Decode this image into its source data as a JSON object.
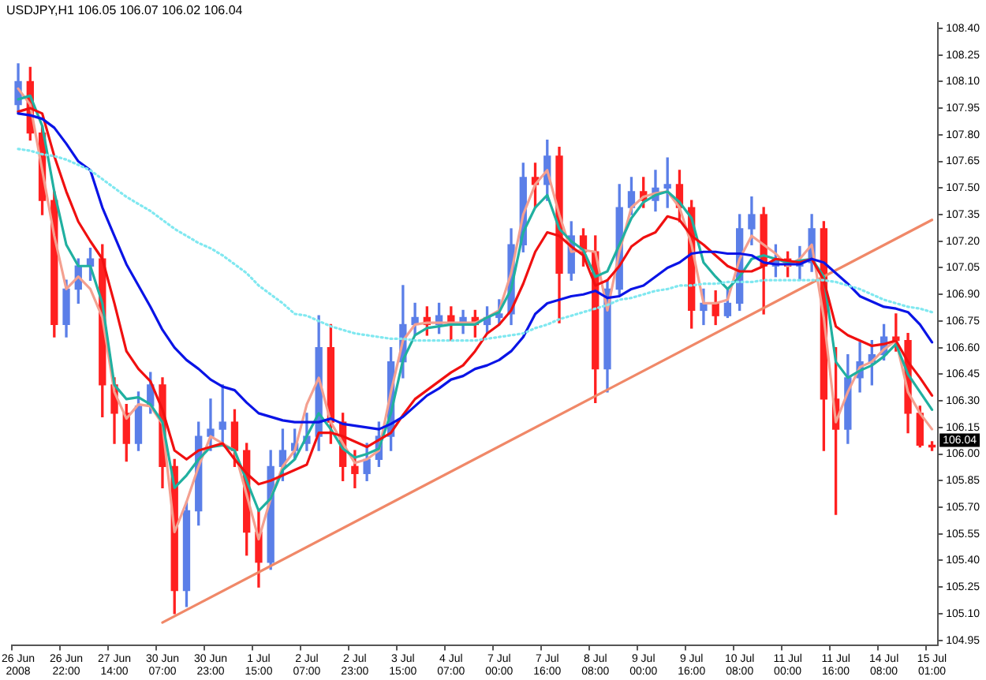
{
  "chart_data": {
    "type": "candlestick",
    "title": "USDJPY,H1 106.05 106.07 106.02 106.04",
    "categories": [
      "26 Jun 2008",
      null,
      null,
      null,
      "26 Jun 22:00",
      null,
      null,
      null,
      "27 Jun 14:00",
      null,
      null,
      null,
      "30 Jun 07:00",
      null,
      null,
      null,
      "30 Jun 23:00",
      null,
      null,
      null,
      "1 Jul 15:00",
      null,
      null,
      null,
      "2 Jul 07:00",
      null,
      null,
      null,
      "2 Jul 23:00",
      null,
      null,
      null,
      "3 Jul 15:00",
      null,
      null,
      null,
      "4 Jul 07:00",
      null,
      null,
      null,
      "7 Jul 00:00",
      null,
      null,
      null,
      "7 Jul 16:00",
      null,
      null,
      null,
      "8 Jul 08:00",
      null,
      null,
      null,
      "9 Jul 00:00",
      null,
      null,
      null,
      "9 Jul 16:00",
      null,
      null,
      null,
      "10 Jul 08:00",
      null,
      null,
      null,
      "11 Jul 00:00",
      null,
      null,
      null,
      "11 Jul 16:00",
      null,
      null,
      null,
      "14 Jul 08:00",
      null,
      null,
      null,
      "15 Jul 01:00"
    ],
    "ohlc": [
      [
        107.97,
        108.2,
        107.92,
        108.1
      ],
      [
        108.1,
        108.18,
        107.77,
        107.81
      ],
      [
        107.81,
        107.85,
        107.35,
        107.43
      ],
      [
        107.43,
        107.48,
        106.66,
        106.73
      ],
      [
        106.73,
        106.98,
        106.66,
        106.93
      ],
      [
        106.93,
        107.1,
        106.85,
        107.06
      ],
      [
        107.06,
        107.16,
        106.98,
        107.1
      ],
      [
        107.1,
        107.18,
        106.21,
        106.39
      ],
      [
        106.39,
        106.43,
        106.06,
        106.23
      ],
      [
        106.23,
        106.28,
        105.96,
        106.06
      ],
      [
        106.06,
        106.35,
        106.02,
        106.27
      ],
      [
        106.27,
        106.46,
        106.23,
        106.39
      ],
      [
        106.39,
        106.43,
        105.81,
        105.93
      ],
      [
        105.93,
        105.97,
        105.1,
        105.23
      ],
      [
        105.23,
        105.73,
        105.14,
        105.68
      ],
      [
        105.68,
        106.18,
        105.6,
        106.1
      ],
      [
        106.1,
        106.31,
        106.02,
        106.14
      ],
      [
        106.14,
        106.39,
        106.06,
        106.18
      ],
      [
        106.18,
        106.25,
        105.93,
        106.02
      ],
      [
        106.02,
        106.06,
        105.43,
        105.56
      ],
      [
        105.56,
        105.68,
        105.25,
        105.39
      ],
      [
        105.39,
        106.02,
        105.35,
        105.93
      ],
      [
        105.93,
        106.14,
        105.85,
        106.02
      ],
      [
        106.02,
        106.14,
        105.97,
        106.06
      ],
      [
        106.06,
        106.23,
        106.02,
        106.1
      ],
      [
        106.1,
        106.78,
        106.02,
        106.6
      ],
      [
        106.6,
        106.73,
        106.06,
        106.18
      ],
      [
        106.18,
        106.23,
        105.85,
        105.93
      ],
      [
        105.93,
        106.02,
        105.81,
        105.89
      ],
      [
        105.89,
        106.06,
        105.85,
        105.97
      ],
      [
        105.97,
        106.18,
        105.93,
        106.1
      ],
      [
        106.1,
        106.6,
        106.02,
        106.52
      ],
      [
        106.52,
        106.95,
        106.43,
        106.73
      ],
      [
        106.73,
        106.85,
        106.67,
        106.77
      ],
      [
        106.77,
        106.83,
        106.67,
        106.73
      ],
      [
        106.73,
        106.85,
        106.68,
        106.78
      ],
      [
        106.78,
        106.83,
        106.64,
        106.73
      ],
      [
        106.73,
        106.81,
        106.68,
        106.77
      ],
      [
        106.77,
        106.81,
        106.66,
        106.73
      ],
      [
        106.73,
        106.83,
        106.68,
        106.77
      ],
      [
        106.77,
        106.87,
        106.73,
        106.79
      ],
      [
        106.79,
        107.27,
        106.73,
        107.18
      ],
      [
        107.18,
        107.64,
        107.14,
        107.56
      ],
      [
        107.56,
        107.64,
        107.39,
        107.52
      ],
      [
        107.52,
        107.77,
        107.43,
        107.68
      ],
      [
        107.68,
        107.73,
        106.74,
        107.02
      ],
      [
        107.02,
        107.31,
        106.98,
        107.23
      ],
      [
        107.23,
        107.27,
        107.06,
        107.14
      ],
      [
        107.14,
        107.23,
        106.29,
        106.48
      ],
      [
        106.48,
        106.98,
        106.35,
        106.93
      ],
      [
        106.93,
        107.52,
        106.89,
        107.39
      ],
      [
        107.39,
        107.56,
        107.35,
        107.48
      ],
      [
        107.48,
        107.56,
        107.39,
        107.43
      ],
      [
        107.43,
        107.6,
        107.37,
        107.5
      ],
      [
        107.5,
        107.67,
        107.39,
        107.52
      ],
      [
        107.52,
        107.6,
        107.31,
        107.39
      ],
      [
        107.39,
        107.43,
        106.71,
        106.81
      ],
      [
        106.81,
        106.93,
        106.73,
        106.85
      ],
      [
        106.85,
        106.92,
        106.73,
        106.78
      ],
      [
        106.78,
        106.93,
        106.77,
        106.85
      ],
      [
        106.85,
        107.35,
        106.81,
        107.27
      ],
      [
        107.27,
        107.45,
        107.18,
        107.35
      ],
      [
        107.35,
        107.39,
        106.79,
        107.06
      ],
      [
        107.06,
        107.18,
        107.0,
        107.1
      ],
      [
        107.1,
        107.14,
        107.0,
        107.06
      ],
      [
        107.06,
        107.17,
        106.98,
        107.08
      ],
      [
        107.08,
        107.35,
        107.03,
        107.27
      ],
      [
        107.27,
        107.31,
        106.02,
        106.31
      ],
      [
        106.31,
        106.6,
        105.66,
        106.14
      ],
      [
        106.14,
        106.56,
        106.06,
        106.43
      ],
      [
        106.43,
        106.63,
        106.35,
        106.52
      ],
      [
        106.52,
        106.64,
        106.39,
        106.56
      ],
      [
        106.56,
        106.73,
        106.53,
        106.66
      ],
      [
        106.66,
        106.79,
        106.58,
        106.64
      ],
      [
        106.64,
        106.68,
        106.12,
        106.23
      ],
      [
        106.23,
        106.27,
        106.04,
        106.05
      ],
      [
        106.05,
        106.07,
        106.02,
        106.04
      ]
    ],
    "colors": [
      "#5b7fe8",
      "#ff2020",
      "#ff2020",
      "#ff2020",
      "#5b7fe8",
      "#5b7fe8",
      "#5b7fe8",
      "#ff2020",
      "#ff2020",
      "#ff2020",
      "#5b7fe8",
      "#5b7fe8",
      "#ff2020",
      "#ff2020",
      "#5b7fe8",
      "#5b7fe8",
      "#5b7fe8",
      "#5b7fe8",
      "#ff2020",
      "#ff2020",
      "#ff2020",
      "#5b7fe8",
      "#5b7fe8",
      "#5b7fe8",
      "#5b7fe8",
      "#5b7fe8",
      "#ff2020",
      "#ff2020",
      "#ff2020",
      "#5b7fe8",
      "#5b7fe8",
      "#5b7fe8",
      "#5b7fe8",
      "#5b7fe8",
      "#ff2020",
      "#5b7fe8",
      "#ff2020",
      "#5b7fe8",
      "#ff2020",
      "#5b7fe8",
      "#5b7fe8",
      "#5b7fe8",
      "#5b7fe8",
      "#ff2020",
      "#5b7fe8",
      "#ff2020",
      "#5b7fe8",
      "#ff2020",
      "#ff2020",
      "#5b7fe8",
      "#5b7fe8",
      "#5b7fe8",
      "#ff2020",
      "#5b7fe8",
      "#5b7fe8",
      "#ff2020",
      "#ff2020",
      "#5b7fe8",
      "#ff2020",
      "#5b7fe8",
      "#5b7fe8",
      "#5b7fe8",
      "#ff2020",
      "#5b7fe8",
      "#ff2020",
      "#5b7fe8",
      "#5b7fe8",
      "#ff2020",
      "#ff2020",
      "#5b7fe8",
      "#5b7fe8",
      "#5b7fe8",
      "#5b7fe8",
      "#ff2020",
      "#ff2020",
      "#ff2020",
      "#ff2020"
    ],
    "series": [
      {
        "type": "line",
        "color": "#80e8f0",
        "line_style": "dotted",
        "values": [
          107.72,
          107.71,
          107.69,
          107.68,
          107.66,
          107.63,
          107.6,
          107.55,
          107.5,
          107.45,
          107.41,
          107.37,
          107.32,
          107.27,
          107.23,
          107.19,
          107.16,
          107.12,
          107.07,
          107.02,
          106.95,
          106.9,
          106.85,
          106.79,
          106.78,
          106.75,
          106.72,
          106.7,
          106.68,
          106.67,
          106.66,
          106.65,
          106.65,
          106.64,
          106.64,
          106.64,
          106.64,
          106.64,
          106.64,
          106.65,
          106.66,
          106.67,
          106.68,
          106.71,
          106.73,
          106.76,
          106.78,
          106.8,
          106.82,
          106.84,
          106.87,
          106.88,
          106.9,
          106.92,
          106.93,
          106.95,
          106.95,
          106.96,
          106.96,
          106.97,
          106.97,
          106.97,
          106.98,
          106.98,
          106.98,
          106.98,
          106.98,
          106.98,
          106.97,
          106.95,
          106.93,
          106.9,
          106.87,
          106.85,
          106.83,
          106.82,
          106.8
        ]
      },
      {
        "type": "line",
        "color": "#0a14e6",
        "values": [
          107.92,
          107.91,
          107.89,
          107.84,
          107.75,
          107.65,
          107.6,
          107.39,
          107.23,
          107.07,
          106.95,
          106.83,
          106.7,
          106.6,
          106.53,
          106.48,
          106.42,
          106.38,
          106.36,
          106.29,
          106.23,
          106.21,
          106.19,
          106.18,
          106.18,
          106.18,
          106.2,
          106.17,
          106.16,
          106.15,
          106.14,
          106.17,
          106.21,
          106.27,
          106.33,
          106.37,
          106.42,
          106.44,
          106.48,
          106.5,
          106.53,
          106.58,
          106.66,
          106.79,
          106.85,
          106.87,
          106.89,
          106.9,
          106.92,
          106.88,
          106.89,
          106.93,
          106.95,
          107.0,
          107.05,
          107.08,
          107.13,
          107.14,
          107.14,
          107.13,
          107.13,
          107.12,
          107.08,
          107.07,
          107.07,
          107.07,
          107.1,
          107.08,
          107.02,
          106.96,
          106.89,
          106.86,
          106.83,
          106.82,
          106.8,
          106.73,
          106.63
        ]
      },
      {
        "type": "line",
        "color": "#f01010",
        "values": [
          107.93,
          107.95,
          107.92,
          107.68,
          107.48,
          107.31,
          107.2,
          107.1,
          106.85,
          106.58,
          106.48,
          106.41,
          106.25,
          106.02,
          105.97,
          106.02,
          106.04,
          106.06,
          105.97,
          105.89,
          105.83,
          105.85,
          105.88,
          105.91,
          105.94,
          106.12,
          106.12,
          106.1,
          106.07,
          106.04,
          106.08,
          106.12,
          106.22,
          106.31,
          106.36,
          106.41,
          106.46,
          106.5,
          106.58,
          106.68,
          106.73,
          106.81,
          106.96,
          107.14,
          107.25,
          107.23,
          107.17,
          107.12,
          106.95,
          106.98,
          107.06,
          107.17,
          107.22,
          107.25,
          107.34,
          107.32,
          107.23,
          107.18,
          107.12,
          107.06,
          107.03,
          107.03,
          107.06,
          107.1,
          107.09,
          107.08,
          107.1,
          106.98,
          106.72,
          106.67,
          106.64,
          106.61,
          106.62,
          106.64,
          106.52,
          106.43,
          106.33
        ]
      },
      {
        "type": "line",
        "color": "#20b0a0",
        "values": [
          108.0,
          108.02,
          107.85,
          107.48,
          107.18,
          107.06,
          107.06,
          106.85,
          106.39,
          106.31,
          106.32,
          106.28,
          106.18,
          105.81,
          105.88,
          105.97,
          106.04,
          106.05,
          106.02,
          105.85,
          105.68,
          105.75,
          105.91,
          105.97,
          106.1,
          106.23,
          106.14,
          106.03,
          105.98,
          106.0,
          106.03,
          106.23,
          106.53,
          106.67,
          106.71,
          106.72,
          106.73,
          106.73,
          106.73,
          106.77,
          106.8,
          106.93,
          107.25,
          107.39,
          107.46,
          107.27,
          107.2,
          107.15,
          107.0,
          107.03,
          107.18,
          107.33,
          107.42,
          107.46,
          107.48,
          107.42,
          107.33,
          107.08,
          107.0,
          106.93,
          107.0,
          107.1,
          107.12,
          107.1,
          107.08,
          107.09,
          107.1,
          107.0,
          106.52,
          106.43,
          106.47,
          106.5,
          106.55,
          106.62,
          106.45,
          106.35,
          106.25
        ]
      },
      {
        "type": "line",
        "color": "#f4a090",
        "values": [
          108.06,
          107.97,
          107.6,
          107.23,
          106.93,
          107.0,
          106.93,
          106.77,
          106.35,
          106.2,
          106.28,
          106.27,
          106.17,
          105.56,
          105.73,
          105.93,
          106.1,
          106.06,
          106.02,
          105.77,
          105.52,
          105.75,
          105.93,
          106.02,
          106.28,
          106.43,
          106.18,
          106.06,
          105.95,
          105.97,
          106.02,
          106.35,
          106.64,
          106.73,
          106.74,
          106.74,
          106.74,
          106.74,
          106.74,
          106.77,
          106.81,
          107.02,
          107.35,
          107.52,
          107.6,
          107.35,
          107.14,
          107.15,
          107.14,
          106.81,
          107.14,
          107.39,
          107.45,
          107.47,
          107.48,
          107.39,
          107.18,
          106.85,
          106.85,
          106.87,
          107.1,
          107.23,
          107.18,
          107.13,
          107.06,
          107.1,
          107.18,
          106.77,
          106.18,
          106.35,
          106.49,
          106.52,
          106.59,
          106.64,
          106.35,
          106.23,
          106.14
        ]
      },
      {
        "type": "line",
        "color": "#f08868",
        "x": [
          "30 Jun 07:00",
          "15 Jul 01:00"
        ],
        "values": [
          105.05,
          107.32
        ]
      }
    ],
    "ylim": [
      104.92,
      108.43
    ],
    "yticks": [
      {
        "value": 104.95,
        "label": "104.95"
      },
      {
        "value": 105.1,
        "label": "105.10"
      },
      {
        "value": 105.25,
        "label": "105.25"
      },
      {
        "value": 105.4,
        "label": "105.40"
      },
      {
        "value": 105.55,
        "label": "105.55"
      },
      {
        "value": 105.7,
        "label": "105.70"
      },
      {
        "value": 105.85,
        "label": "105.85"
      },
      {
        "value": 106.0,
        "label": "106.00"
      },
      {
        "value": 106.15,
        "label": "106.15"
      },
      {
        "value": 106.3,
        "label": "106.30"
      },
      {
        "value": 106.45,
        "label": "106.45"
      },
      {
        "value": 106.6,
        "label": "106.60"
      },
      {
        "value": 106.75,
        "label": "106.75"
      },
      {
        "value": 106.9,
        "label": "106.90"
      },
      {
        "value": 107.05,
        "label": "107.05"
      },
      {
        "value": 107.2,
        "label": "107.20"
      },
      {
        "value": 107.35,
        "label": "107.35"
      },
      {
        "value": 107.5,
        "label": "107.50"
      },
      {
        "value": 107.65,
        "label": "107.65"
      },
      {
        "value": 107.8,
        "label": "107.80"
      },
      {
        "value": 107.95,
        "label": "107.95"
      },
      {
        "value": 108.1,
        "label": "108.10"
      },
      {
        "value": 108.25,
        "label": "108.25"
      },
      {
        "value": 108.4,
        "label": "108.40"
      }
    ],
    "annotations": [
      "106.04"
    ],
    "marker": "none",
    "line_style": "solid"
  }
}
